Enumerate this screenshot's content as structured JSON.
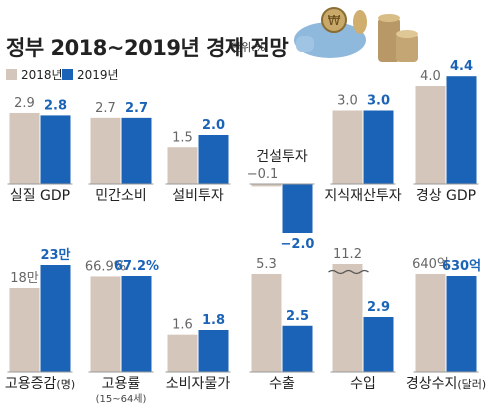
{
  "title": "정부 2018~2019년 경제 전망",
  "unit": "단위:%",
  "colors": {
    "y2018": "#d4c6bb",
    "y2019": "#1b63b6",
    "label2019": "#1b63b6",
    "text": "#333333",
    "panel": "#dde8f3"
  },
  "chart_data": {
    "type": "bar",
    "title": "정부 2018~2019년 경제 전망",
    "unit": "단위:%",
    "series": [
      {
        "name": "2018년",
        "color": "#d4c6bb"
      },
      {
        "name": "2019년",
        "color": "#1b63b6"
      }
    ],
    "rows": [
      [
        {
          "category": "실질 GDP",
          "values": [
            2.9,
            2.8
          ],
          "labels": [
            "2.9",
            "2.8"
          ]
        },
        {
          "category": "민간소비",
          "values": [
            2.7,
            2.7
          ],
          "labels": [
            "2.7",
            "2.7"
          ]
        },
        {
          "category": "설비투자",
          "values": [
            1.5,
            2.0
          ],
          "labels": [
            "1.5",
            "2.0"
          ]
        },
        {
          "category": "건설투자",
          "values": [
            -0.1,
            -2.0
          ],
          "labels": [
            "−0.1",
            "−2.0"
          ]
        },
        {
          "category": "지식재산투자",
          "values": [
            3.0,
            3.0
          ],
          "labels": [
            "3.0",
            "3.0"
          ]
        },
        {
          "category": "경상 GDP",
          "values": [
            4.0,
            4.4
          ],
          "labels": [
            "4.0",
            "4.4"
          ]
        }
      ],
      [
        {
          "category": "고용증감",
          "unit": "명",
          "values": [
            180000,
            230000
          ],
          "labels": [
            "18만",
            "23만"
          ]
        },
        {
          "category": "고용률",
          "sublabel": "(15~64세)",
          "values": [
            66.9,
            67.2
          ],
          "labels": [
            "66.9%",
            "67.2%"
          ]
        },
        {
          "category": "소비자물가",
          "values": [
            1.6,
            1.8
          ],
          "labels": [
            "1.6",
            "1.8"
          ]
        },
        {
          "category": "수출",
          "values": [
            5.3,
            2.5
          ],
          "labels": [
            "5.3",
            "2.5"
          ]
        },
        {
          "category": "수입",
          "values": [
            11.2,
            2.9
          ],
          "labels": [
            "11.2",
            "2.9"
          ],
          "axis_break": true
        },
        {
          "category": "경상수지",
          "unit": "달러",
          "values": [
            64000000000,
            63000000000
          ],
          "labels": [
            "640억",
            "630억"
          ]
        }
      ]
    ]
  }
}
